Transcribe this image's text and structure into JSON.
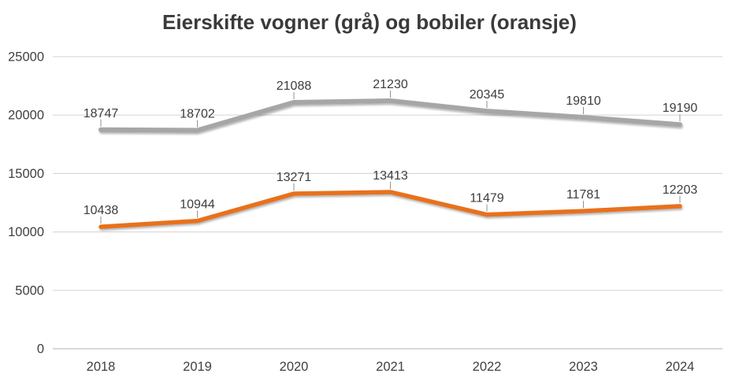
{
  "title": "Eierskifte vogner (grå) og bobiler (oransje)",
  "colors": {
    "title_text": "#3a3a3a",
    "axis_text": "#404040",
    "data_label_text": "#3d3d3d",
    "gridline": "#d9d9d9",
    "zero_line": "#c0c0c0",
    "leader_tick": "#909090",
    "series_gray": "#a6a6a6",
    "series_orange": "#e8711f",
    "background": "#ffffff"
  },
  "chart_data": {
    "type": "line",
    "title": "Eierskifte vogner (grå) og bobiler (oransje)",
    "categories": [
      "2018",
      "2019",
      "2020",
      "2021",
      "2022",
      "2023",
      "2024"
    ],
    "series": [
      {
        "name": "vogner (grå)",
        "color": "#a6a6a6",
        "stroke_width": 6,
        "values": [
          18747,
          18702,
          21088,
          21230,
          20345,
          19810,
          19190
        ]
      },
      {
        "name": "bobiler (oransje)",
        "color": "#e8711f",
        "stroke_width": 5.5,
        "values": [
          10438,
          10944,
          13271,
          13413,
          11479,
          11781,
          12203
        ]
      }
    ],
    "xlabel": "",
    "ylabel": "",
    "ylim": [
      0,
      25000
    ],
    "ytick_interval": 5000,
    "yticks": [
      0,
      5000,
      10000,
      15000,
      20000,
      25000
    ],
    "ytick_labels": [
      "0",
      "5000",
      "10000",
      "15000",
      "20000",
      "25000"
    ],
    "grid": true,
    "legend_position": "none",
    "data_labels": true
  }
}
